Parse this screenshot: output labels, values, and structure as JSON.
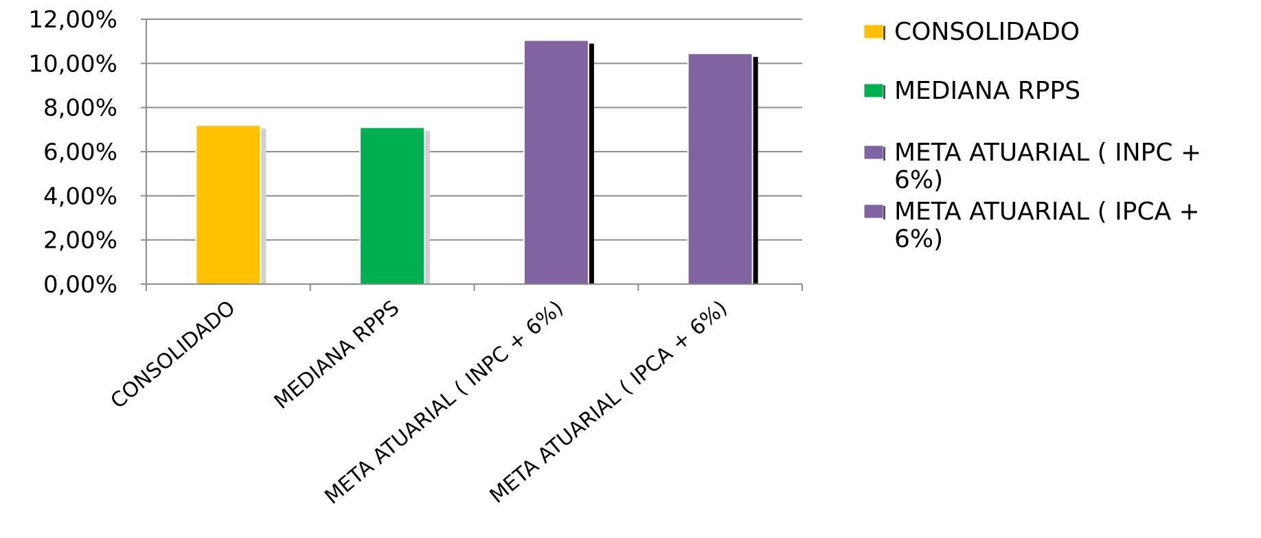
{
  "chart_data": {
    "type": "bar",
    "title": "",
    "xlabel": "",
    "ylabel": "",
    "categories": [
      "CONSOLIDADO",
      "MEDIANA RPPS",
      "META ATUARIAL ( INPC + 6%)",
      "META ATUARIAL ( IPCA + 6%)"
    ],
    "values": [
      7.2,
      7.1,
      11.05,
      10.45
    ],
    "colors": [
      "#FFC000",
      "#00B050",
      "#8064A2",
      "#8064A2"
    ],
    "ylim": [
      0,
      12
    ],
    "yticks": [
      0,
      2,
      4,
      6,
      8,
      10,
      12
    ],
    "ytick_labels": [
      "0,00%",
      "2,00%",
      "4,00%",
      "6,00%",
      "8,00%",
      "10,00%",
      "12,00%"
    ],
    "grid": true,
    "legend": {
      "position": "right",
      "entries": [
        {
          "lines": [
            "CONSOLIDADO"
          ],
          "color": "#FFC000"
        },
        {
          "lines": [
            "MEDIANA RPPS"
          ],
          "color": "#00B050"
        },
        {
          "lines": [
            "META ATUARIAL ( INPC +",
            "6%)"
          ],
          "color": "#8064A2"
        },
        {
          "lines": [
            "META ATUARIAL ( IPCA +",
            "6%)"
          ],
          "color": "#8064A2"
        }
      ]
    }
  }
}
